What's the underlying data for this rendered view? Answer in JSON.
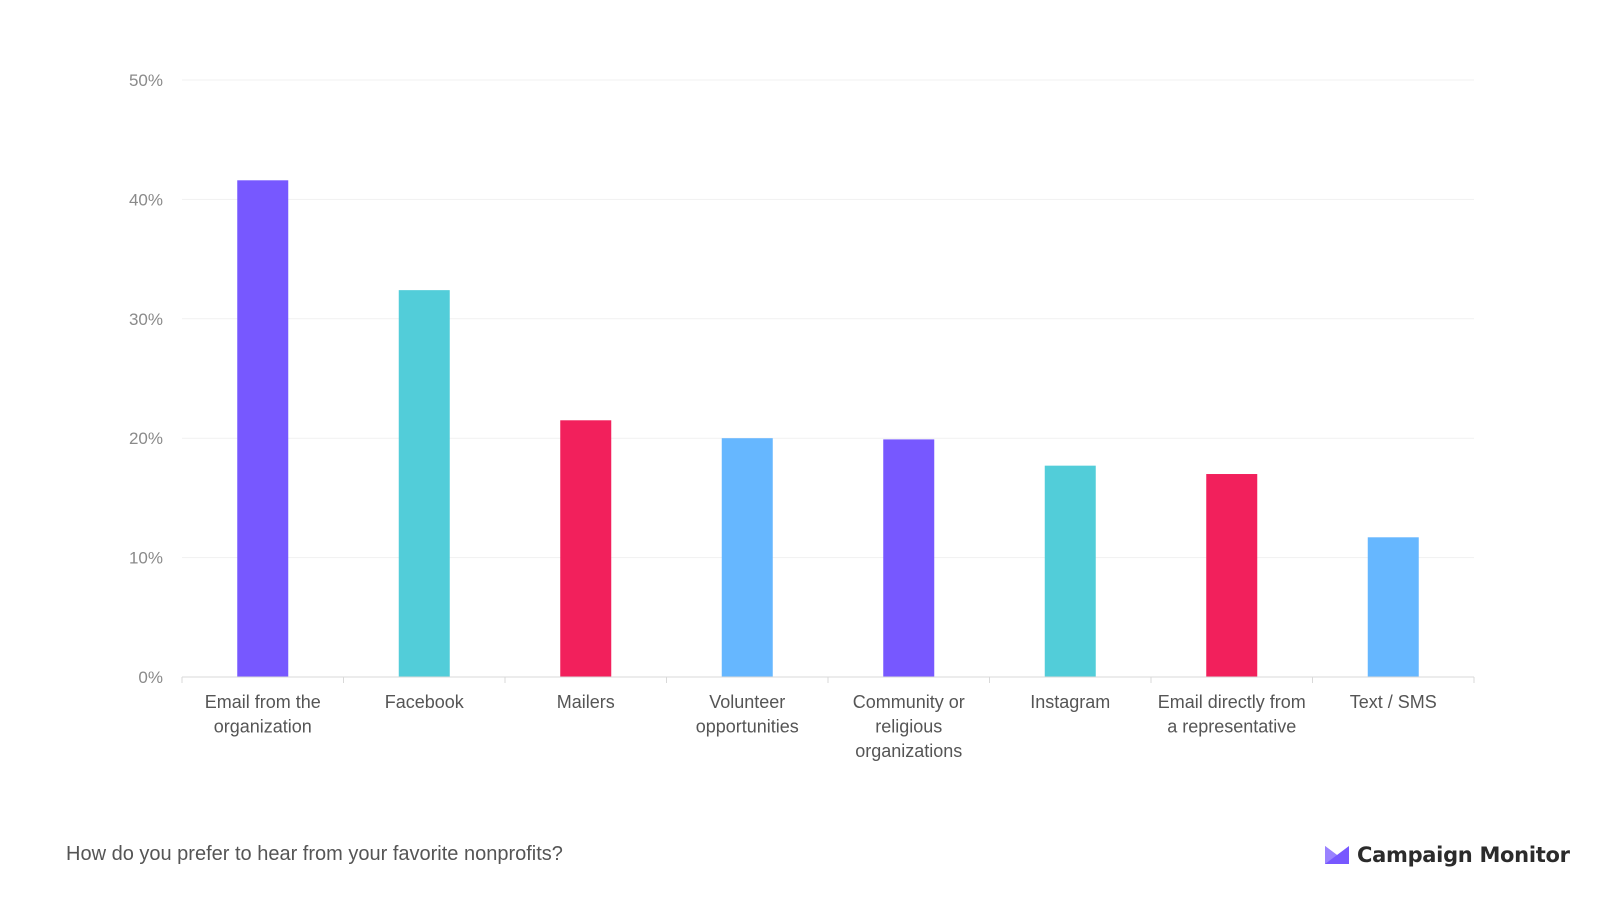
{
  "chart_data": {
    "type": "bar",
    "categories": [
      "Email from the organization",
      "Facebook",
      "Mailers",
      "Volunteer opportunities",
      "Community or religious organizations",
      "Instagram",
      "Email directly from a representative",
      "Text / SMS"
    ],
    "category_lines": [
      [
        "Email from the",
        "organization"
      ],
      [
        "Facebook"
      ],
      [
        "Mailers"
      ],
      [
        "Volunteer",
        "opportunities"
      ],
      [
        "Community or",
        "religious",
        "organizations"
      ],
      [
        "Instagram"
      ],
      [
        "Email directly from",
        "a representative"
      ],
      [
        "Text / SMS"
      ]
    ],
    "values": [
      41.6,
      32.4,
      21.5,
      20.0,
      19.9,
      17.7,
      17.0,
      11.7
    ],
    "colors": [
      "#7758FF",
      "#52CDD9",
      "#F2205C",
      "#66B7FF",
      "#7758FF",
      "#52CDD9",
      "#F2205C",
      "#66B7FF"
    ],
    "yticks": [
      "0%",
      "10%",
      "20%",
      "30%",
      "40%",
      "50%"
    ],
    "ylim": [
      0,
      50
    ],
    "grid": true,
    "title": "",
    "xlabel": "",
    "ylabel": ""
  },
  "caption": "How do you prefer to hear from your favorite nonprofits?",
  "brand": {
    "name": "Campaign Monitor",
    "icon": "envelope-logo-icon",
    "color": "#7758FF"
  }
}
